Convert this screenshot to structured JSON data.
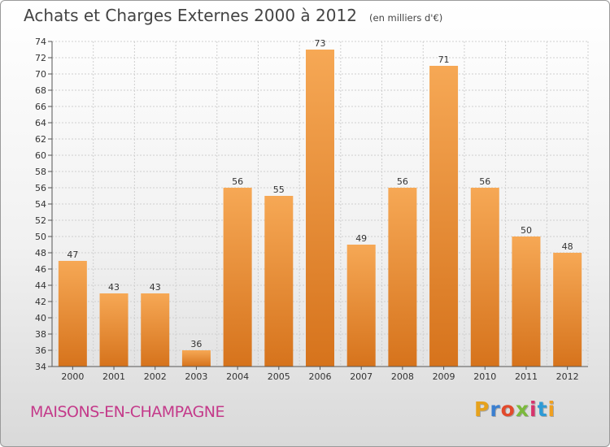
{
  "header": {
    "title": "Achats et Charges Externes 2000 à 2012",
    "subtitle": "(en milliers d'€)"
  },
  "footer": {
    "place": "MAISONS-EN-CHAMPAGNE",
    "logo_letters": [
      "P",
      "r",
      "o",
      "x",
      "i",
      "t",
      "i"
    ]
  },
  "colors": {
    "bar_light": "#f6a855",
    "bar_dark": "#d6731c",
    "place_text": "#c43a8a",
    "grid": "#cfcfcf"
  },
  "chart_data": {
    "type": "bar",
    "title": "Achats et Charges Externes 2000 à 2012",
    "subtitle": "(en milliers d'€)",
    "categories": [
      "2000",
      "2001",
      "2002",
      "2003",
      "2004",
      "2005",
      "2006",
      "2007",
      "2008",
      "2009",
      "2010",
      "2011",
      "2012"
    ],
    "values": [
      47,
      43,
      43,
      36,
      56,
      55,
      73,
      49,
      56,
      71,
      56,
      50,
      48
    ],
    "ylim": [
      34,
      74
    ],
    "yticks": [
      34,
      36,
      38,
      40,
      42,
      44,
      46,
      48,
      50,
      52,
      54,
      56,
      58,
      60,
      62,
      64,
      66,
      68,
      70,
      72,
      74
    ],
    "grid": true,
    "legend": "none"
  }
}
